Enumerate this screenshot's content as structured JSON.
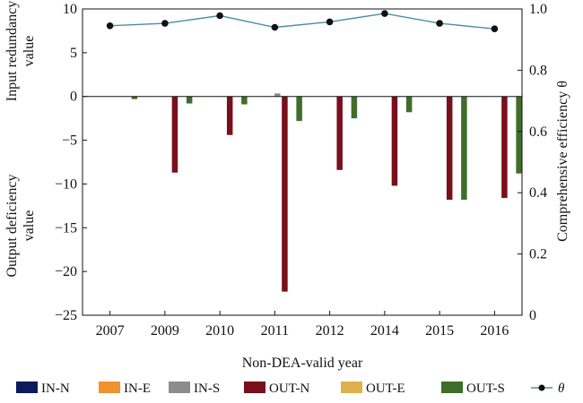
{
  "chart_data": {
    "type": "bar",
    "xlabel": "Non-DEA-valid year",
    "ylabel_left_top": [
      "Input redundancy",
      "value"
    ],
    "ylabel_left_bottom": [
      "Output deficiency",
      "value"
    ],
    "ylabel_right": "Comprehensive efficiency θ",
    "categories": [
      "2007",
      "2009",
      "2010",
      "2011",
      "2012",
      "2014",
      "2015",
      "2016"
    ],
    "ylim_left": [
      -25,
      10
    ],
    "ylim_right": [
      0,
      1.0
    ],
    "left_ticks": [
      10,
      5,
      0,
      -5,
      -10,
      -15,
      -20,
      -25
    ],
    "left_tick_labels": [
      "10",
      "5",
      "0",
      "−5",
      "−10",
      "−15",
      "−20",
      "−25"
    ],
    "right_ticks": [
      1.0,
      0.8,
      0.6,
      0.4,
      0.2,
      0
    ],
    "right_tick_labels": [
      "1.0",
      "0.8",
      "0.6",
      "0.4",
      "0.2",
      "0"
    ],
    "series": [
      {
        "name": "IN-N",
        "color": "#0d1a5c",
        "axis": "left",
        "values": [
          0,
          0,
          0,
          0,
          0,
          0,
          0,
          0
        ]
      },
      {
        "name": "IN-E",
        "color": "#f0922e",
        "axis": "left",
        "values": [
          0,
          0,
          0,
          0,
          0,
          0,
          0,
          0
        ]
      },
      {
        "name": "IN-S",
        "color": "#8c8c8c",
        "axis": "left",
        "values": [
          0,
          0,
          0,
          0.35,
          0,
          0,
          0,
          0
        ]
      },
      {
        "name": "OUT-N",
        "color": "#7a0f1c",
        "axis": "left",
        "values": [
          0,
          -8.7,
          -4.4,
          -22.3,
          -8.4,
          -10.2,
          -11.8,
          -11.6
        ]
      },
      {
        "name": "OUT-E",
        "color": "#e0b04e",
        "axis": "left",
        "values": [
          0,
          0,
          0,
          0,
          0,
          0,
          0,
          0
        ]
      },
      {
        "name": "OUT-S",
        "color": "#3f6e2a",
        "axis": "left",
        "values": [
          -0.3,
          -0.8,
          -0.9,
          -2.8,
          -2.5,
          -1.8,
          -11.8,
          -8.8
        ]
      },
      {
        "name": "θ",
        "color": "#4a8fa6",
        "marker_color": "#111111",
        "axis": "right",
        "type": "line",
        "values": [
          0.945,
          0.953,
          0.978,
          0.94,
          0.958,
          0.985,
          0.953,
          0.935
        ]
      }
    ],
    "grid": false,
    "legend_position": "bottom"
  }
}
